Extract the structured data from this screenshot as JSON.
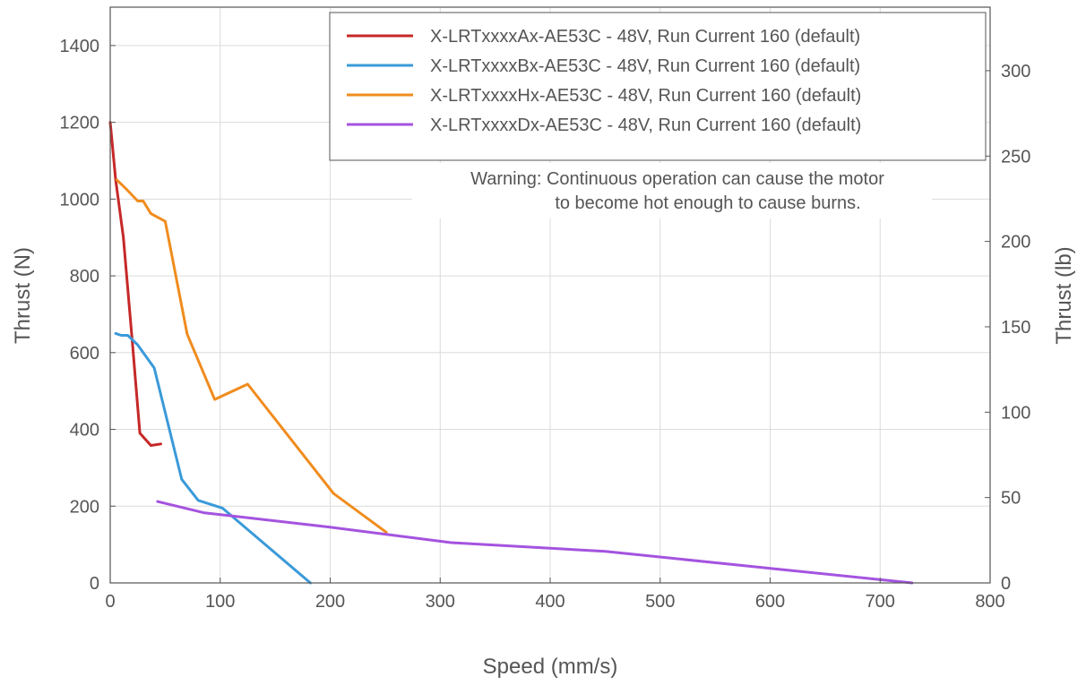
{
  "chart_data": {
    "type": "line",
    "xlabel": "Speed (mm/s)",
    "ylabel": "Thrust (N)",
    "ylabel_right": "Thrust (lb)",
    "xlim": [
      0,
      800
    ],
    "ylim": [
      0,
      1500
    ],
    "ylim_right_lb": [
      0,
      337.2
    ],
    "x_ticks": [
      0,
      100,
      200,
      300,
      400,
      500,
      600,
      700,
      800
    ],
    "y_ticks": [
      0,
      200,
      400,
      600,
      800,
      1000,
      1200,
      1400
    ],
    "y_right_ticks": [
      0,
      50,
      100,
      150,
      200,
      250,
      300
    ],
    "grid": true,
    "legend_position": "top-right",
    "annotation_lines": [
      "Warning: Continuous operation can cause the motor",
      "to become hot enough to cause burns."
    ],
    "series": [
      {
        "name": "X-LRTxxxxAx-AE53C - 48V, Run Current 160 (default)",
        "color": "#c62828",
        "x": [
          0,
          5,
          12,
          20,
          27,
          37,
          46
        ],
        "y": [
          1200,
          1050,
          900,
          630,
          390,
          358,
          362
        ]
      },
      {
        "name": "X-LRTxxxxBx-AE53C - 48V, Run Current 160 (default)",
        "color": "#3a9ad9",
        "x": [
          5,
          10,
          16,
          25,
          40,
          65,
          80,
          102,
          182
        ],
        "y": [
          650,
          645,
          645,
          620,
          560,
          270,
          215,
          195,
          0
        ]
      },
      {
        "name": "X-LRTxxxxHx-AE53C - 48V, Run Current 160 (default)",
        "color": "#f08c1e",
        "x": [
          6,
          15,
          25,
          30,
          37,
          50,
          70,
          95,
          125,
          203,
          251
        ],
        "y": [
          1050,
          1025,
          995,
          995,
          962,
          942,
          648,
          478,
          518,
          233,
          132
        ]
      },
      {
        "name": "X-LRTxxxxDx-AE53C - 48V, Run Current 160 (default)",
        "color": "#a453df",
        "x": [
          43,
          85,
          200,
          310,
          450,
          600,
          729
        ],
        "y": [
          212,
          183,
          145,
          105,
          82,
          38,
          0
        ]
      }
    ]
  }
}
